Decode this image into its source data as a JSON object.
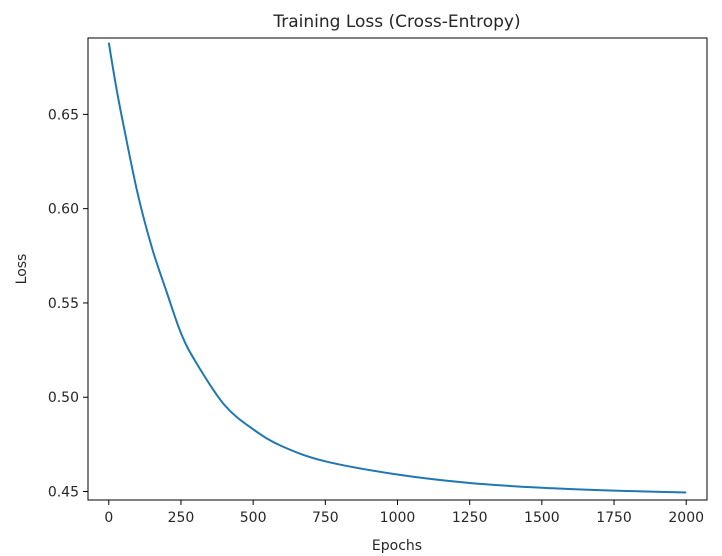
{
  "chart_data": {
    "type": "line",
    "title": "Training Loss (Cross-Entropy)",
    "xlabel": "Epochs",
    "ylabel": "Loss",
    "xlim": [
      -72,
      2072
    ],
    "ylim": [
      0.4455,
      0.6905
    ],
    "x_ticks": [
      0,
      250,
      500,
      750,
      1000,
      1250,
      1500,
      1750,
      2000
    ],
    "x_tick_labels": [
      "0",
      "250",
      "500",
      "750",
      "1000",
      "1250",
      "1500",
      "1750",
      "2000"
    ],
    "y_ticks": [
      0.45,
      0.5,
      0.55,
      0.6,
      0.65
    ],
    "y_tick_labels": [
      "0.45",
      "0.50",
      "0.55",
      "0.60",
      "0.65"
    ],
    "grid": false,
    "series": [
      {
        "color": "#1f77b4",
        "x": [
          0,
          25,
          50,
          100,
          150,
          200,
          250,
          300,
          400,
          500,
          600,
          750,
          1000,
          1250,
          1500,
          1750,
          2000
        ],
        "y": [
          0.688,
          0.665,
          0.645,
          0.608,
          0.579,
          0.556,
          0.534,
          0.519,
          0.496,
          0.483,
          0.474,
          0.466,
          0.459,
          0.4545,
          0.452,
          0.4505,
          0.4495
        ]
      }
    ]
  }
}
